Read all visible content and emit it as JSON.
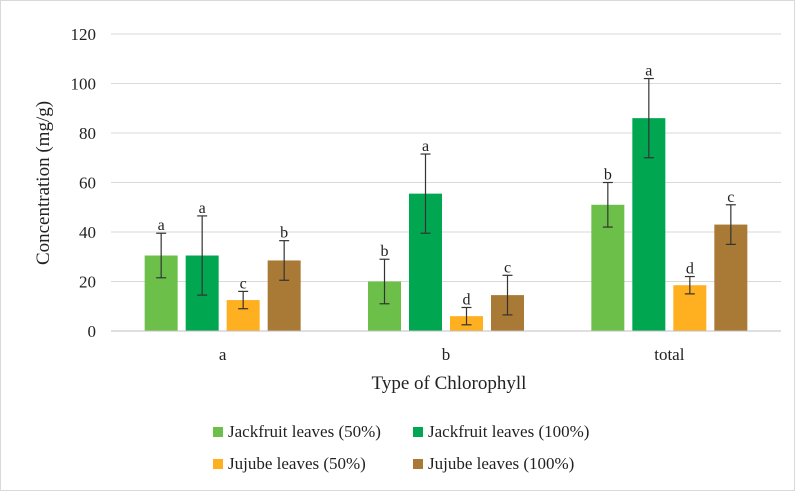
{
  "chart_data": {
    "type": "bar",
    "xlabel": "Type of Chlorophyll",
    "ylabel": "Concentration (mg/g)",
    "ylim": [
      0,
      120
    ],
    "yticks": [
      0,
      20,
      40,
      60,
      80,
      100,
      120
    ],
    "grid": true,
    "legend_position": "bottom",
    "categories": [
      "a",
      "b",
      "total"
    ],
    "series": [
      {
        "name": "Jackfruit leaves (50%)",
        "color": "#6cc04a",
        "values": [
          30.5,
          20,
          51
        ],
        "errors": [
          9,
          9,
          9
        ],
        "labels": [
          "a",
          "b",
          "b"
        ]
      },
      {
        "name": "Jackfruit leaves (100%)",
        "color": "#00a650",
        "values": [
          30.5,
          55.5,
          86
        ],
        "errors": [
          16,
          16,
          16
        ],
        "labels": [
          "a",
          "a",
          "a"
        ]
      },
      {
        "name": "Jujube leaves (50%)",
        "color": "#ffb020",
        "values": [
          12.5,
          6,
          18.5
        ],
        "errors": [
          3.5,
          3.5,
          3.5
        ],
        "labels": [
          "c",
          "d",
          "d"
        ]
      },
      {
        "name": "Jujube leaves (100%)",
        "color": "#a97a35",
        "values": [
          28.5,
          14.5,
          43
        ],
        "errors": [
          8,
          8,
          8
        ],
        "labels": [
          "b",
          "c",
          "c"
        ]
      }
    ]
  }
}
